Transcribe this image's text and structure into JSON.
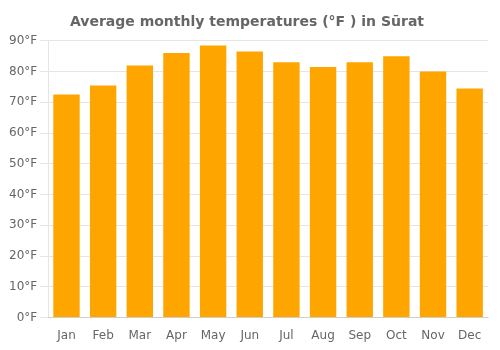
{
  "chart_data": {
    "type": "bar",
    "title": "Average monthly temperatures (°F ) in Sūrat",
    "categories": [
      "Jan",
      "Feb",
      "Mar",
      "Apr",
      "May",
      "Jun",
      "Jul",
      "Aug",
      "Sep",
      "Oct",
      "Nov",
      "Dec"
    ],
    "values": [
      72.5,
      75.5,
      82,
      86,
      88.5,
      86.5,
      83,
      81.5,
      83,
      85,
      80,
      74.5
    ],
    "color": "#FFA500",
    "ylim": [
      0,
      90
    ],
    "yticks": [
      {
        "value": 0,
        "label": "0°F"
      },
      {
        "value": 10,
        "label": "10°F"
      },
      {
        "value": 20,
        "label": "20°F"
      },
      {
        "value": 30,
        "label": "30°F"
      },
      {
        "value": 40,
        "label": "40°F"
      },
      {
        "value": 50,
        "label": "50°F"
      },
      {
        "value": 60,
        "label": "60°F"
      },
      {
        "value": 70,
        "label": "70°F"
      },
      {
        "value": 80,
        "label": "80°F"
      },
      {
        "value": 90,
        "label": "90°F"
      }
    ],
    "grid": true
  }
}
